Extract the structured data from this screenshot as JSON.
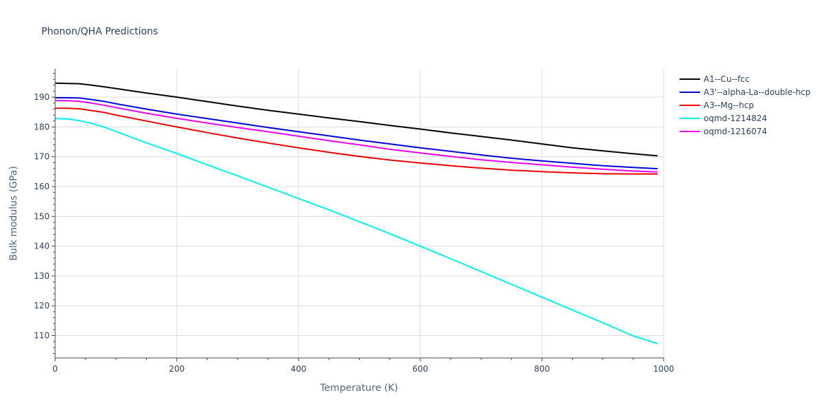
{
  "chart_data": {
    "type": "line",
    "title": "Phonon/QHA Predictions",
    "xlabel": "Temperature (K)",
    "ylabel": "Bulk modulus (GPa)",
    "xlim": [
      0,
      1000
    ],
    "ylim": [
      102.5,
      199.5
    ],
    "xticks": [
      0,
      200,
      400,
      600,
      800,
      1000
    ],
    "yticks": [
      110,
      120,
      130,
      140,
      150,
      160,
      170,
      180,
      190
    ],
    "grid": true,
    "legend_position": "right",
    "x": [
      0,
      20,
      40,
      60,
      80,
      100,
      150,
      200,
      250,
      300,
      350,
      400,
      450,
      500,
      550,
      600,
      650,
      700,
      750,
      800,
      850,
      900,
      950,
      990
    ],
    "series": [
      {
        "name": "A1--Cu--fcc",
        "color": "#000000",
        "values": [
          194.7,
          194.6,
          194.5,
          194.0,
          193.5,
          192.9,
          191.4,
          190.0,
          188.5,
          187.0,
          185.6,
          184.3,
          183.0,
          181.8,
          180.5,
          179.3,
          178.0,
          176.8,
          175.6,
          174.3,
          173.0,
          172.0,
          171.0,
          170.3
        ]
      },
      {
        "name": "A3'--alpha-La--double-hcp",
        "color": "#0000dd",
        "values": [
          189.8,
          189.8,
          189.7,
          189.2,
          188.6,
          187.8,
          186.0,
          184.3,
          182.8,
          181.3,
          179.8,
          178.4,
          177.0,
          175.6,
          174.3,
          173.0,
          171.8,
          170.6,
          169.5,
          168.6,
          167.8,
          167.0,
          166.4,
          166.0
        ]
      },
      {
        "name": "A3--Mg--hcp",
        "color": "#ee0000",
        "values": [
          186.3,
          186.3,
          186.1,
          185.5,
          184.9,
          184.0,
          182.0,
          180.0,
          178.1,
          176.3,
          174.6,
          173.0,
          171.5,
          170.1,
          168.9,
          167.9,
          167.0,
          166.2,
          165.5,
          165.0,
          164.6,
          164.3,
          164.2,
          164.2
        ]
      },
      {
        "name": "oqmd-1214824",
        "color": "#00f0f0",
        "values": [
          182.8,
          182.7,
          182.1,
          181.2,
          180.0,
          178.5,
          174.7,
          171.1,
          167.3,
          163.6,
          159.8,
          156.0,
          152.2,
          148.2,
          144.2,
          140.0,
          135.8,
          131.5,
          127.2,
          122.9,
          118.6,
          114.3,
          109.9,
          107.3
        ]
      },
      {
        "name": "oqmd-1216074",
        "color": "#ee00ee",
        "values": [
          188.8,
          188.8,
          188.6,
          188.0,
          187.3,
          186.5,
          184.6,
          182.9,
          181.3,
          179.8,
          178.4,
          176.9,
          175.4,
          174.0,
          172.5,
          171.3,
          170.1,
          169.0,
          168.1,
          167.3,
          166.5,
          165.8,
          165.2,
          164.9
        ]
      }
    ]
  }
}
